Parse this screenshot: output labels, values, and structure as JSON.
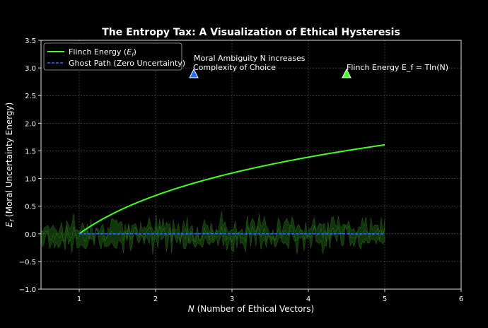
{
  "chart_data": {
    "type": "line",
    "title": "The Entropy Tax: A Visualization of Ethical Hysteresis",
    "xlabel_italic": "N",
    "xlabel_rest": " (Number of Ethical Vectors)",
    "ylabel": "E_f (Moral Uncertainty Energy)",
    "xlim": [
      0.5,
      6
    ],
    "ylim": [
      -1.0,
      3.5
    ],
    "xticks": [
      1,
      2,
      3,
      4,
      5,
      6
    ],
    "xtick_labels": [
      "1",
      "2",
      "3",
      "4",
      "5",
      "6"
    ],
    "yticks": [
      -1.0,
      -0.5,
      0.0,
      0.5,
      1.0,
      1.5,
      2.0,
      2.5,
      3.0,
      3.5
    ],
    "ytick_labels": [
      "−1.0",
      "−0.5",
      "0.0",
      "0.5",
      "1.0",
      "1.5",
      "2.0",
      "2.5",
      "3.0",
      "3.5"
    ],
    "grid": true,
    "legend_placement": "upper-left",
    "background": "#000000",
    "series": [
      {
        "name": "Flinch Energy (E_f)",
        "legend_main": "Flinch Energy (",
        "legend_sub": "E",
        "legend_subscript": "f",
        "legend_end": ")",
        "color": "#44ff22",
        "style": "solid",
        "function": "ln(N)",
        "x_range": [
          1,
          5
        ]
      },
      {
        "name": "Ghost Path (Zero Uncertainty)",
        "color": "#1e6fff",
        "style": "dashed",
        "value": 0.0,
        "x_range": [
          1,
          5
        ]
      }
    ],
    "noise_band": {
      "color": "#1a4d10",
      "x_range": [
        0.5,
        5
      ],
      "center": 0.0,
      "amplitude": 0.35
    },
    "annotations": [
      {
        "line1": "Moral Ambiguity N increases",
        "line2": "Complexity of Choice",
        "x": 2.5,
        "y": 2.9,
        "marker": "triangle",
        "color": "#1e6fff"
      },
      {
        "text": "Flinch Energy E_f = Tln(N)",
        "x": 4.5,
        "y": 2.9,
        "marker": "triangle",
        "color": "#44ff22"
      }
    ]
  }
}
